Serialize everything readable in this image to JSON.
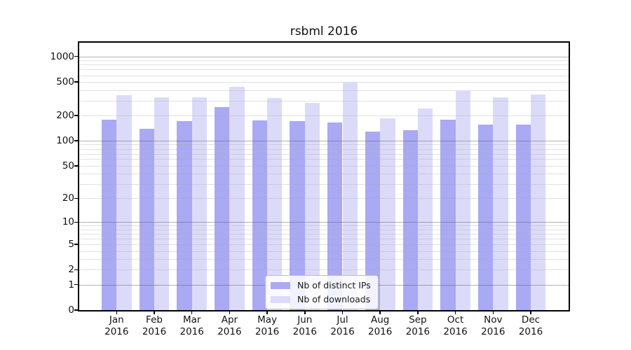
{
  "title": "rsbml 2016",
  "colors": {
    "distinct_ips": "#a9a9f4",
    "downloads": "#dbdbf9",
    "grid_major": "rgba(85,85,85,0.45)",
    "grid_minor": "rgba(170,170,170,0.35)",
    "axis": "#000000"
  },
  "y_axis": {
    "tick_labels": [
      "1000",
      "500",
      "200",
      "100",
      "50",
      "20",
      "10",
      "5",
      "2",
      "1",
      "0"
    ],
    "tick_values": [
      1000,
      500,
      200,
      100,
      50,
      20,
      10,
      5,
      2,
      1,
      0
    ]
  },
  "x_axis": {
    "categories": [
      {
        "month": "Jan",
        "year": "2016"
      },
      {
        "month": "Feb",
        "year": "2016"
      },
      {
        "month": "Mar",
        "year": "2016"
      },
      {
        "month": "Apr",
        "year": "2016"
      },
      {
        "month": "May",
        "year": "2016"
      },
      {
        "month": "Jun",
        "year": "2016"
      },
      {
        "month": "Jul",
        "year": "2016"
      },
      {
        "month": "Aug",
        "year": "2016"
      },
      {
        "month": "Sep",
        "year": "2016"
      },
      {
        "month": "Oct",
        "year": "2016"
      },
      {
        "month": "Nov",
        "year": "2016"
      },
      {
        "month": "Dec",
        "year": "2016"
      }
    ]
  },
  "legend": {
    "items": [
      {
        "label": "Nb of distinct IPs",
        "series": "distinct_ips"
      },
      {
        "label": "Nb of downloads",
        "series": "downloads"
      }
    ]
  },
  "chart_data": {
    "type": "bar",
    "title": "rsbml 2016",
    "categories": [
      "Jan 2016",
      "Feb 2016",
      "Mar 2016",
      "Apr 2016",
      "May 2016",
      "Jun 2016",
      "Jul 2016",
      "Aug 2016",
      "Sep 2016",
      "Oct 2016",
      "Nov 2016",
      "Dec 2016"
    ],
    "series": [
      {
        "name": "Nb of distinct IPs",
        "color": "#a9a9f4",
        "values": [
          178,
          140,
          170,
          252,
          175,
          172,
          165,
          128,
          134,
          178,
          155,
          156
        ]
      },
      {
        "name": "Nb of downloads",
        "color": "#dbdbf9",
        "values": [
          350,
          330,
          330,
          435,
          322,
          280,
          490,
          185,
          242,
          390,
          328,
          352
        ]
      }
    ],
    "xlabel": "",
    "ylabel": "",
    "yscale": "log1p",
    "ylim": [
      0,
      1458
    ],
    "yticks": [
      1000,
      500,
      200,
      100,
      50,
      20,
      10,
      5,
      2,
      1,
      0
    ],
    "grid": "horizontal, major at powers of 10 (darker), minors 2-9 per decade (faint)",
    "legend_position": "inside bottom-center"
  }
}
